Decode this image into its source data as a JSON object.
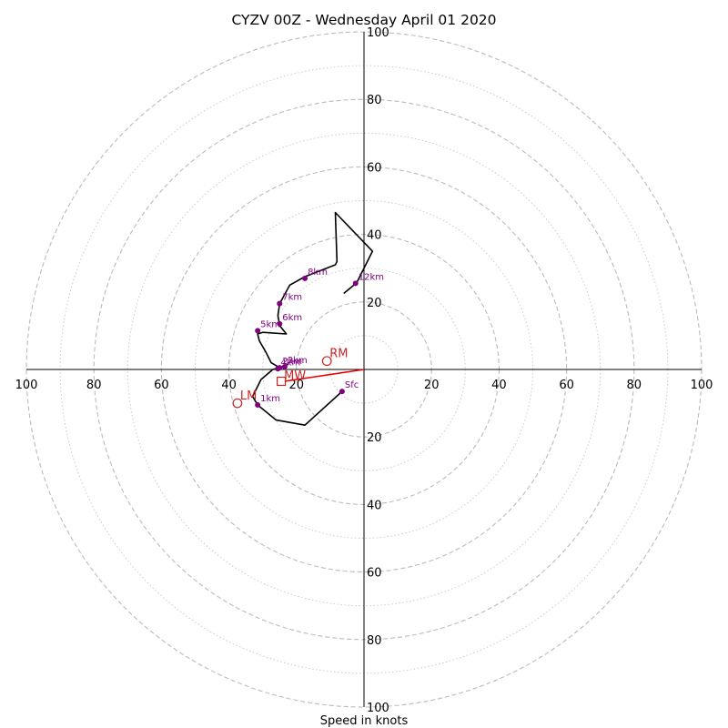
{
  "chart_data": {
    "type": "hodograph",
    "title": "CYZV 00Z - Wednesday April 01 2020",
    "xlabel": "Speed in knots",
    "ring_max": 100,
    "ring_major": [
      20,
      40,
      60,
      80,
      100
    ],
    "ring_minor": [
      10,
      30,
      50,
      70,
      90
    ],
    "axis_tick_labels": [
      "20",
      "40",
      "60",
      "80",
      "100"
    ],
    "colors": {
      "hodo_line": "#000000",
      "height_marker": "#800080",
      "storm_vector": "#ee0000",
      "storm_marker": "#cc2222",
      "grid": "#bbbbbb",
      "axis": "#000000"
    },
    "hodograph_uv": [
      [
        -6.5,
        -6.5
      ],
      [
        -17.5,
        -16.5
      ],
      [
        -26,
        -15
      ],
      [
        -31.5,
        -10.5
      ],
      [
        -33,
        -8
      ],
      [
        -30.5,
        -3
      ],
      [
        -27,
        0
      ],
      [
        -25,
        0.5
      ],
      [
        -22.5,
        1.5
      ],
      [
        -25,
        0.5
      ],
      [
        -27.5,
        2
      ],
      [
        -29,
        5
      ],
      [
        -31,
        8.5
      ],
      [
        -31.5,
        10.5
      ],
      [
        -30,
        11
      ],
      [
        -23,
        10.5
      ],
      [
        -25,
        13
      ],
      [
        -25.5,
        16
      ],
      [
        -25,
        19.5
      ],
      [
        -22,
        25
      ],
      [
        -17.5,
        27.5
      ],
      [
        -8.5,
        31
      ],
      [
        -8,
        32
      ],
      [
        -8.5,
        46.5
      ],
      [
        2.5,
        35
      ],
      [
        -2,
        26
      ],
      [
        -3,
        25
      ],
      [
        -6,
        22.5
      ]
    ],
    "height_markers": [
      {
        "label": "Sfc",
        "u": -6.5,
        "v": -6.5
      },
      {
        "label": "1km",
        "u": -31.5,
        "v": -10.5
      },
      {
        "label": "2km",
        "u": -25,
        "v": 0.5
      },
      {
        "label": "3km",
        "u": -23.5,
        "v": 0.8
      },
      {
        "label": "4km",
        "u": -25.5,
        "v": 0.2
      },
      {
        "label": "5km",
        "u": -31.5,
        "v": 11.5
      },
      {
        "label": "6km",
        "u": -25,
        "v": 13.5
      },
      {
        "label": "7km",
        "u": -25,
        "v": 19.5
      },
      {
        "label": "8km",
        "u": -17.5,
        "v": 27
      },
      {
        "label": "12km",
        "u": -2.5,
        "v": 25.5
      }
    ],
    "storm_motion": [
      {
        "label": "RM",
        "u": -11,
        "v": 2.5,
        "marker": "circle"
      },
      {
        "label": "LM",
        "u": -37.5,
        "v": -10,
        "marker": "circle"
      },
      {
        "label": "MW",
        "u": -24.5,
        "v": -3.5,
        "marker": "square"
      }
    ],
    "storm_vector_from": [
      0,
      0
    ],
    "storm_vector_to": [
      -23.5,
      -3.5
    ]
  }
}
